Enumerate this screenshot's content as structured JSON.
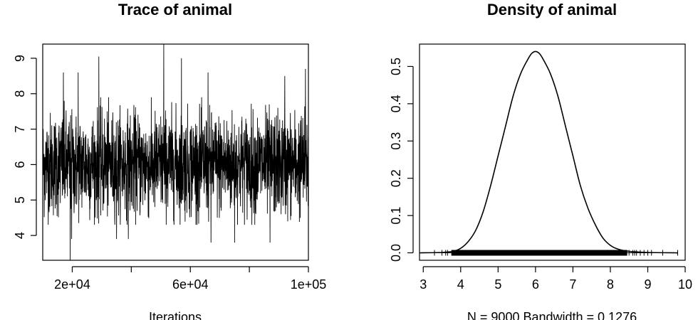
{
  "chart_data": [
    {
      "type": "line",
      "title": "Trace of animal",
      "xlabel": "Iterations",
      "ylabel": "",
      "xlim": [
        10000,
        100000
      ],
      "ylim": [
        3.3,
        9.4
      ],
      "x_ticks": [
        20000,
        60000,
        100000
      ],
      "x_tick_labels": [
        "2e+04",
        "6e+04",
        "1e+05"
      ],
      "y_ticks": [
        4,
        5,
        6,
        7,
        8,
        9
      ],
      "y_tick_labels": [
        "4",
        "5",
        "6",
        "7",
        "8",
        "9"
      ],
      "grid": false,
      "series": [
        {
          "x_start": 10010,
          "x_end": 100000,
          "n_points": 9000,
          "center": 6.0,
          "typical_min": 4.7,
          "typical_max": 7.6,
          "values_min": 3.3,
          "values_max": 9.4,
          "spikes": [
            {
              "x": 17000,
              "y": 8.6
            },
            {
              "x": 22000,
              "y": 8.6
            },
            {
              "x": 29000,
              "y": 9.05
            },
            {
              "x": 51000,
              "y": 9.4
            },
            {
              "x": 57000,
              "y": 9.0
            },
            {
              "x": 66000,
              "y": 8.6
            },
            {
              "x": 92000,
              "y": 8.5
            },
            {
              "x": 99000,
              "y": 8.7
            },
            {
              "x": 19300,
              "y": 3.3
            },
            {
              "x": 19800,
              "y": 3.9
            },
            {
              "x": 35000,
              "y": 3.9
            },
            {
              "x": 39000,
              "y": 3.9
            },
            {
              "x": 67000,
              "y": 3.8
            },
            {
              "x": 75000,
              "y": 3.8
            },
            {
              "x": 87000,
              "y": 3.8
            }
          ]
        }
      ]
    },
    {
      "type": "line",
      "title": "Density of animal",
      "xlabel": "N = 9000   Bandwidth = 0.1276",
      "ylabel": "",
      "xlim": [
        2.9,
        10.0
      ],
      "ylim": [
        -0.02,
        0.56
      ],
      "x_ticks": [
        3,
        4,
        5,
        6,
        7,
        8,
        9,
        10
      ],
      "x_tick_labels": [
        "3",
        "4",
        "5",
        "6",
        "7",
        "8",
        "9",
        "10"
      ],
      "y_ticks": [
        0.0,
        0.1,
        0.2,
        0.3,
        0.4,
        0.5
      ],
      "y_tick_labels": [
        "0.0",
        "0.1",
        "0.2",
        "0.3",
        "0.4",
        "0.5"
      ],
      "grid": false,
      "series": [
        {
          "x": [
            2.9,
            3.5,
            3.8,
            4.0,
            4.2,
            4.4,
            4.6,
            4.8,
            5.0,
            5.2,
            5.4,
            5.6,
            5.8,
            5.9,
            6.0,
            6.1,
            6.2,
            6.4,
            6.6,
            6.8,
            7.0,
            7.2,
            7.4,
            7.6,
            7.8,
            8.0,
            8.2,
            8.5,
            9.0,
            9.8
          ],
          "y": [
            0.0,
            0.001,
            0.004,
            0.012,
            0.03,
            0.06,
            0.11,
            0.18,
            0.26,
            0.34,
            0.42,
            0.48,
            0.52,
            0.535,
            0.54,
            0.535,
            0.52,
            0.48,
            0.42,
            0.34,
            0.26,
            0.18,
            0.12,
            0.075,
            0.04,
            0.02,
            0.01,
            0.004,
            0.001,
            0.0
          ]
        }
      ],
      "rug": {
        "dense_from": 3.75,
        "dense_to": 8.45,
        "outliers": [
          3.3,
          3.5,
          3.6,
          3.65,
          8.5,
          8.6,
          8.65,
          8.7,
          8.8,
          8.9,
          9.0,
          9.1,
          9.4,
          9.8
        ]
      }
    }
  ]
}
